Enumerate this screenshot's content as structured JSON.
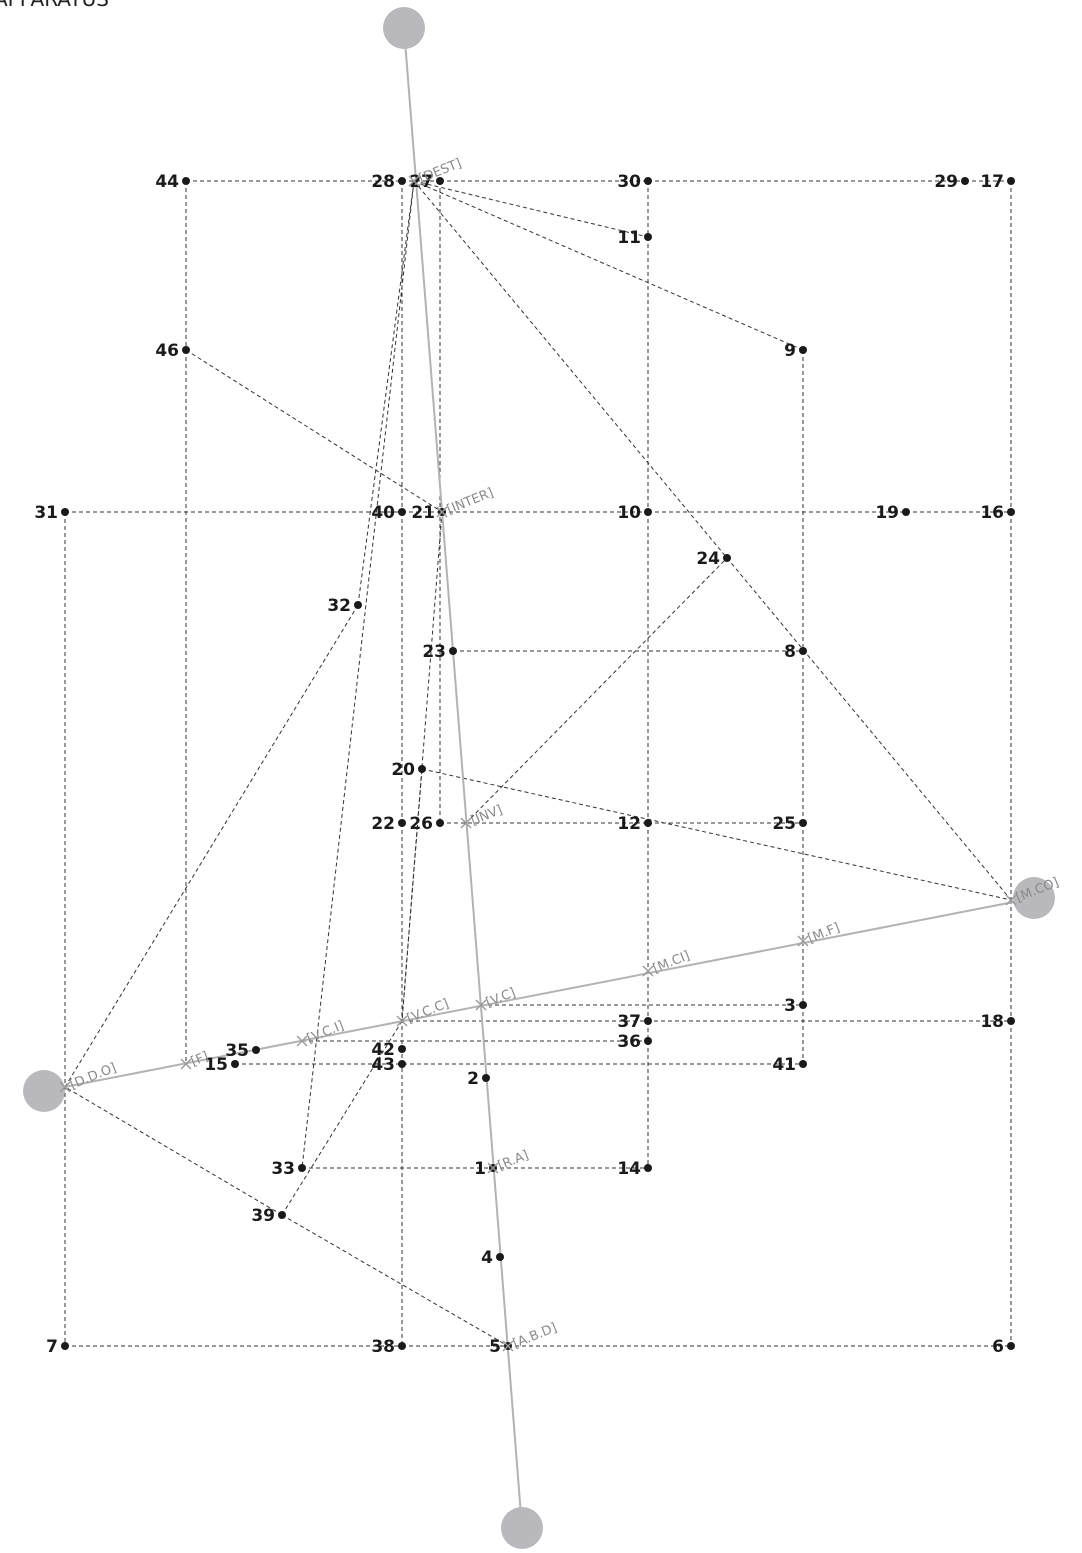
{
  "title": "APPARATUS",
  "nodes": [
    {
      "id": "1",
      "label": "1"
    },
    {
      "id": "2",
      "label": "2"
    },
    {
      "id": "3",
      "label": "3"
    },
    {
      "id": "4",
      "label": "4"
    },
    {
      "id": "5",
      "label": "5"
    },
    {
      "id": "6",
      "label": "6"
    },
    {
      "id": "7",
      "label": "7"
    },
    {
      "id": "8",
      "label": "8"
    },
    {
      "id": "9",
      "label": "9"
    },
    {
      "id": "10",
      "label": "10"
    },
    {
      "id": "11",
      "label": "11"
    },
    {
      "id": "12",
      "label": "12"
    },
    {
      "id": "14",
      "label": "14"
    },
    {
      "id": "15",
      "label": "15"
    },
    {
      "id": "16",
      "label": "16"
    },
    {
      "id": "17",
      "label": "17"
    },
    {
      "id": "18",
      "label": "18"
    },
    {
      "id": "19",
      "label": "19"
    },
    {
      "id": "20",
      "label": "20"
    },
    {
      "id": "21",
      "label": "21"
    },
    {
      "id": "22",
      "label": "22"
    },
    {
      "id": "23",
      "label": "23"
    },
    {
      "id": "24",
      "label": "24"
    },
    {
      "id": "25",
      "label": "25"
    },
    {
      "id": "26",
      "label": "26"
    },
    {
      "id": "27",
      "label": "27"
    },
    {
      "id": "28",
      "label": "28"
    },
    {
      "id": "29",
      "label": "29"
    },
    {
      "id": "30",
      "label": "30"
    },
    {
      "id": "31",
      "label": "31"
    },
    {
      "id": "32",
      "label": "32"
    },
    {
      "id": "33",
      "label": "33"
    },
    {
      "id": "35",
      "label": "35"
    },
    {
      "id": "36",
      "label": "36"
    },
    {
      "id": "37",
      "label": "37"
    },
    {
      "id": "38",
      "label": "38"
    },
    {
      "id": "39",
      "label": "39"
    },
    {
      "id": "40",
      "label": "40"
    },
    {
      "id": "41",
      "label": "41"
    },
    {
      "id": "42",
      "label": "42"
    },
    {
      "id": "43",
      "label": "43"
    },
    {
      "id": "44",
      "label": "44"
    },
    {
      "id": "46",
      "label": "46"
    }
  ],
  "crossings": [
    {
      "id": "DEST",
      "label": "[DEST]"
    },
    {
      "id": "INTER",
      "label": "[INTER]"
    },
    {
      "id": "INV",
      "label": "[INV]"
    },
    {
      "id": "MCO",
      "label": "[M.CO]"
    },
    {
      "id": "MF",
      "label": "[M.F]"
    },
    {
      "id": "MCI",
      "label": "[M.CI]"
    },
    {
      "id": "VC",
      "label": "[V.C]"
    },
    {
      "id": "VCC",
      "label": "[V.C.C]"
    },
    {
      "id": "VCI",
      "label": "[V.C.I]"
    },
    {
      "id": "F",
      "label": "[F]"
    },
    {
      "id": "DDO",
      "label": "[D.D.O]"
    },
    {
      "id": "RA",
      "label": "[R.A]"
    },
    {
      "id": "ABD",
      "label": "[A.B.D]"
    }
  ],
  "hubs": [
    "top",
    "bottom",
    "left",
    "right"
  ],
  "edges": [
    [
      "44",
      "28"
    ],
    [
      "28",
      "27"
    ],
    [
      "27",
      "30"
    ],
    [
      "30",
      "29"
    ],
    [
      "29",
      "17"
    ],
    [
      "44",
      "46"
    ],
    [
      "46",
      "F"
    ],
    [
      "46",
      "INTER"
    ],
    [
      "28",
      "40"
    ],
    [
      "40",
      "22"
    ],
    [
      "22",
      "38"
    ],
    [
      "27",
      "26"
    ],
    [
      "26",
      "12"
    ],
    [
      "12",
      "25"
    ],
    [
      "30",
      "11"
    ],
    [
      "11",
      "10"
    ],
    [
      "10",
      "12"
    ],
    [
      "12",
      "37"
    ],
    [
      "37",
      "36"
    ],
    [
      "36",
      "14"
    ],
    [
      "17",
      "16"
    ],
    [
      "16",
      "MCO"
    ],
    [
      "MCO",
      "18"
    ],
    [
      "18",
      "6"
    ],
    [
      "31",
      "40"
    ],
    [
      "40",
      "21"
    ],
    [
      "21",
      "10"
    ],
    [
      "10",
      "19"
    ],
    [
      "19",
      "16"
    ],
    [
      "31",
      "7"
    ],
    [
      "7",
      "38"
    ],
    [
      "38",
      "5"
    ],
    [
      "5",
      "6"
    ],
    [
      "9",
      "8"
    ],
    [
      "8",
      "25"
    ],
    [
      "25",
      "3"
    ],
    [
      "3",
      "41"
    ],
    [
      "DEST",
      "11"
    ],
    [
      "DEST",
      "9"
    ],
    [
      "23",
      "8"
    ],
    [
      "DEST",
      "MCO"
    ],
    [
      "DDO",
      "32"
    ],
    [
      "32",
      "DEST"
    ],
    [
      "DEST",
      "33"
    ],
    [
      "21",
      "VCC"
    ],
    [
      "INV",
      "24"
    ],
    [
      "20",
      "MCO"
    ],
    [
      "20",
      "VCC"
    ],
    [
      "VCC",
      "39"
    ],
    [
      "39",
      "DDO"
    ],
    [
      "39",
      "5"
    ],
    [
      "VC",
      "3"
    ],
    [
      "VCC",
      "18"
    ],
    [
      "VCI",
      "36"
    ],
    [
      "15",
      "41"
    ],
    [
      "33",
      "1"
    ],
    [
      "1",
      "14"
    ]
  ]
}
